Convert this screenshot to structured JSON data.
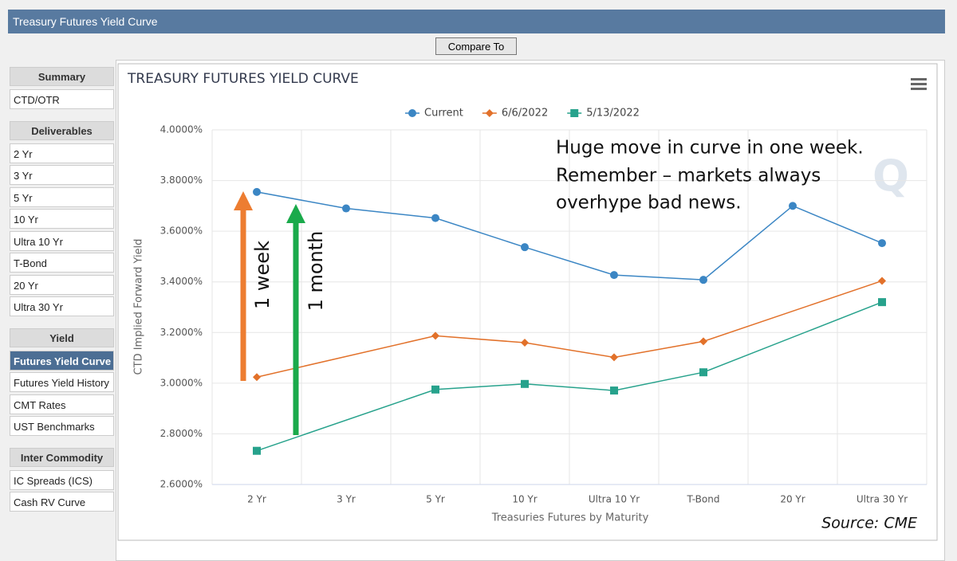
{
  "header": {
    "title": "Treasury Futures Yield Curve"
  },
  "compare_button": "Compare To",
  "sidebar": [
    {
      "title": "Summary",
      "items": [
        "CTD/OTR"
      ]
    },
    {
      "title": "Deliverables",
      "items": [
        "2 Yr",
        "3 Yr",
        "5 Yr",
        "10 Yr",
        "Ultra 10 Yr",
        "T-Bond",
        "20 Yr",
        "Ultra 30 Yr"
      ]
    },
    {
      "title": "Yield",
      "items": [
        "Futures Yield Curve",
        "Futures Yield History",
        "CMT Rates",
        "UST Benchmarks"
      ]
    },
    {
      "title": "Inter Commodity",
      "items": [
        "IC Spreads (ICS)",
        "Cash RV Curve"
      ]
    }
  ],
  "chart_data": {
    "type": "line",
    "title": "TREASURY FUTURES YIELD CURVE",
    "x_label": "Treasuries Futures by Maturity",
    "y_label": "CTD Implied Forward Yield",
    "categories": [
      "2 Yr",
      "3 Yr",
      "5 Yr",
      "10 Yr",
      "Ultra 10 Yr",
      "T-Bond",
      "20 Yr",
      "Ultra 30 Yr"
    ],
    "series": [
      {
        "name": "Current",
        "color": "#3b86c4",
        "marker": "circle",
        "values": [
          3.755,
          3.69,
          3.652,
          3.537,
          3.427,
          3.408,
          3.7,
          3.553
        ]
      },
      {
        "name": "6/6/2022",
        "color": "#e2712a",
        "marker": "diamond",
        "values": [
          3.024,
          null,
          3.187,
          3.16,
          3.102,
          3.165,
          null,
          3.404
        ]
      },
      {
        "name": "5/13/2022",
        "color": "#27a28c",
        "marker": "square",
        "values": [
          2.733,
          null,
          2.975,
          2.997,
          2.971,
          3.043,
          null,
          3.32
        ]
      }
    ],
    "ylim": [
      2.6,
      4.0
    ],
    "yticks": [
      {
        "value": 2.6,
        "label": "2.6000%"
      },
      {
        "value": 2.8,
        "label": "2.8000%"
      },
      {
        "value": 3.0,
        "label": "3.0000%"
      },
      {
        "value": 3.2,
        "label": "3.2000%"
      },
      {
        "value": 3.4,
        "label": "3.4000%"
      },
      {
        "value": 3.6,
        "label": "3.6000%"
      },
      {
        "value": 3.8,
        "label": "3.8000%"
      },
      {
        "value": 4.0,
        "label": "4.0000%"
      }
    ],
    "grid": true,
    "annotations": [
      "Huge move in curve in one week.",
      "Remember – markets always",
      "overhype bad news.",
      "1 week",
      "1 month",
      "Source: CME"
    ]
  }
}
